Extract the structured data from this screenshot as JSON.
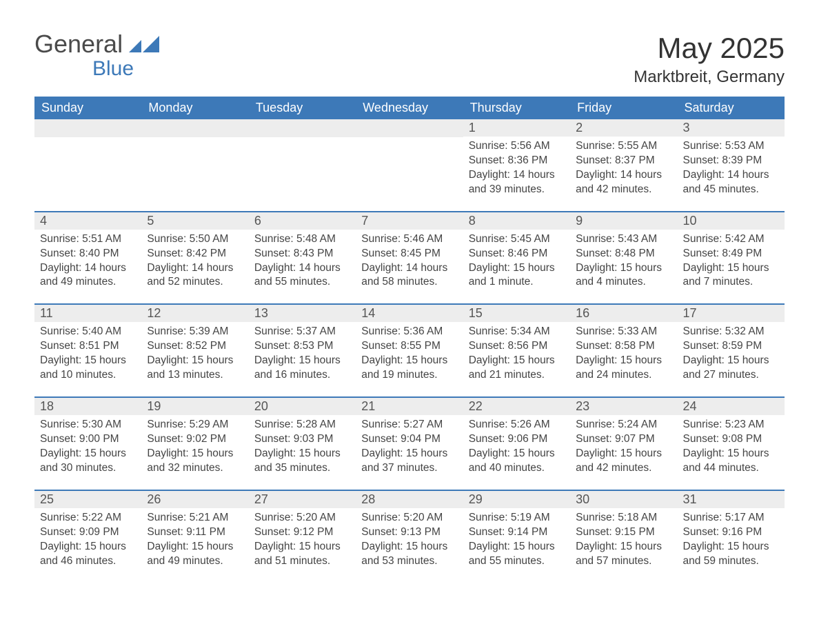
{
  "logo": {
    "word1": "General",
    "word2": "Blue",
    "accent_color": "#3d79b8",
    "text_color": "#4a4a4a"
  },
  "header": {
    "title": "May 2025",
    "location": "Marktbreit, Germany"
  },
  "colors": {
    "header_bg": "#3d79b8",
    "header_text": "#ffffff",
    "daynum_bg": "#ededed",
    "row_divider": "#3d79b8",
    "body_text": "#444444",
    "page_bg": "#ffffff"
  },
  "columns": [
    "Sunday",
    "Monday",
    "Tuesday",
    "Wednesday",
    "Thursday",
    "Friday",
    "Saturday"
  ],
  "weeks": [
    [
      {
        "blank": true
      },
      {
        "blank": true
      },
      {
        "blank": true
      },
      {
        "blank": true
      },
      {
        "n": "1",
        "sunrise": "5:56 AM",
        "sunset": "8:36 PM",
        "daylight": "14 hours and 39 minutes."
      },
      {
        "n": "2",
        "sunrise": "5:55 AM",
        "sunset": "8:37 PM",
        "daylight": "14 hours and 42 minutes."
      },
      {
        "n": "3",
        "sunrise": "5:53 AM",
        "sunset": "8:39 PM",
        "daylight": "14 hours and 45 minutes."
      }
    ],
    [
      {
        "n": "4",
        "sunrise": "5:51 AM",
        "sunset": "8:40 PM",
        "daylight": "14 hours and 49 minutes."
      },
      {
        "n": "5",
        "sunrise": "5:50 AM",
        "sunset": "8:42 PM",
        "daylight": "14 hours and 52 minutes."
      },
      {
        "n": "6",
        "sunrise": "5:48 AM",
        "sunset": "8:43 PM",
        "daylight": "14 hours and 55 minutes."
      },
      {
        "n": "7",
        "sunrise": "5:46 AM",
        "sunset": "8:45 PM",
        "daylight": "14 hours and 58 minutes."
      },
      {
        "n": "8",
        "sunrise": "5:45 AM",
        "sunset": "8:46 PM",
        "daylight": "15 hours and 1 minute."
      },
      {
        "n": "9",
        "sunrise": "5:43 AM",
        "sunset": "8:48 PM",
        "daylight": "15 hours and 4 minutes."
      },
      {
        "n": "10",
        "sunrise": "5:42 AM",
        "sunset": "8:49 PM",
        "daylight": "15 hours and 7 minutes."
      }
    ],
    [
      {
        "n": "11",
        "sunrise": "5:40 AM",
        "sunset": "8:51 PM",
        "daylight": "15 hours and 10 minutes."
      },
      {
        "n": "12",
        "sunrise": "5:39 AM",
        "sunset": "8:52 PM",
        "daylight": "15 hours and 13 minutes."
      },
      {
        "n": "13",
        "sunrise": "5:37 AM",
        "sunset": "8:53 PM",
        "daylight": "15 hours and 16 minutes."
      },
      {
        "n": "14",
        "sunrise": "5:36 AM",
        "sunset": "8:55 PM",
        "daylight": "15 hours and 19 minutes."
      },
      {
        "n": "15",
        "sunrise": "5:34 AM",
        "sunset": "8:56 PM",
        "daylight": "15 hours and 21 minutes."
      },
      {
        "n": "16",
        "sunrise": "5:33 AM",
        "sunset": "8:58 PM",
        "daylight": "15 hours and 24 minutes."
      },
      {
        "n": "17",
        "sunrise": "5:32 AM",
        "sunset": "8:59 PM",
        "daylight": "15 hours and 27 minutes."
      }
    ],
    [
      {
        "n": "18",
        "sunrise": "5:30 AM",
        "sunset": "9:00 PM",
        "daylight": "15 hours and 30 minutes."
      },
      {
        "n": "19",
        "sunrise": "5:29 AM",
        "sunset": "9:02 PM",
        "daylight": "15 hours and 32 minutes."
      },
      {
        "n": "20",
        "sunrise": "5:28 AM",
        "sunset": "9:03 PM",
        "daylight": "15 hours and 35 minutes."
      },
      {
        "n": "21",
        "sunrise": "5:27 AM",
        "sunset": "9:04 PM",
        "daylight": "15 hours and 37 minutes."
      },
      {
        "n": "22",
        "sunrise": "5:26 AM",
        "sunset": "9:06 PM",
        "daylight": "15 hours and 40 minutes."
      },
      {
        "n": "23",
        "sunrise": "5:24 AM",
        "sunset": "9:07 PM",
        "daylight": "15 hours and 42 minutes."
      },
      {
        "n": "24",
        "sunrise": "5:23 AM",
        "sunset": "9:08 PM",
        "daylight": "15 hours and 44 minutes."
      }
    ],
    [
      {
        "n": "25",
        "sunrise": "5:22 AM",
        "sunset": "9:09 PM",
        "daylight": "15 hours and 46 minutes."
      },
      {
        "n": "26",
        "sunrise": "5:21 AM",
        "sunset": "9:11 PM",
        "daylight": "15 hours and 49 minutes."
      },
      {
        "n": "27",
        "sunrise": "5:20 AM",
        "sunset": "9:12 PM",
        "daylight": "15 hours and 51 minutes."
      },
      {
        "n": "28",
        "sunrise": "5:20 AM",
        "sunset": "9:13 PM",
        "daylight": "15 hours and 53 minutes."
      },
      {
        "n": "29",
        "sunrise": "5:19 AM",
        "sunset": "9:14 PM",
        "daylight": "15 hours and 55 minutes."
      },
      {
        "n": "30",
        "sunrise": "5:18 AM",
        "sunset": "9:15 PM",
        "daylight": "15 hours and 57 minutes."
      },
      {
        "n": "31",
        "sunrise": "5:17 AM",
        "sunset": "9:16 PM",
        "daylight": "15 hours and 59 minutes."
      }
    ]
  ],
  "labels": {
    "sunrise": "Sunrise: ",
    "sunset": "Sunset: ",
    "daylight": "Daylight: "
  }
}
